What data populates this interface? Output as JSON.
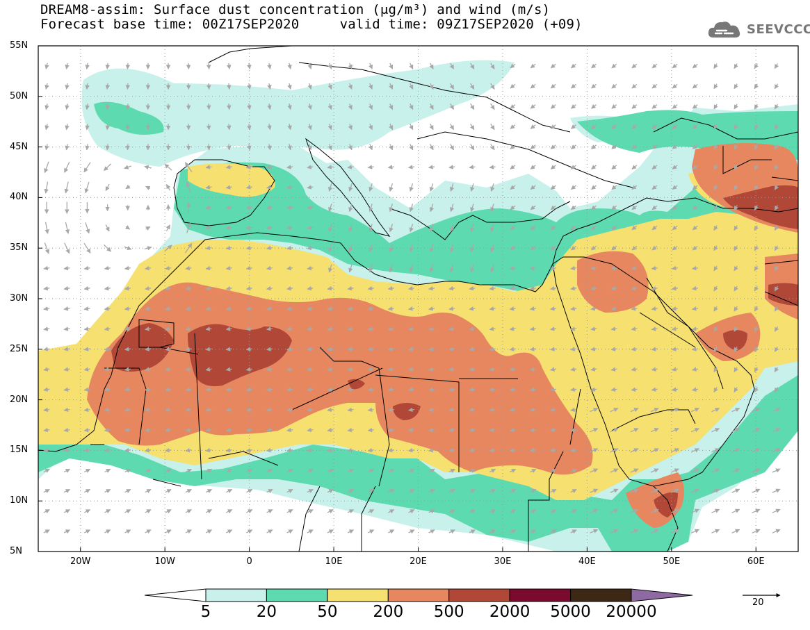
{
  "title_line1": "DREAM8-assim: Surface dust concentration (μg/m³) and wind (m/s)",
  "title_line2": "Forecast base time: 00Z17SEP2020     valid time: 09Z17SEP2020 (+09)",
  "logo": {
    "text": "SEEVCCC",
    "icon": "cloud-logo-icon"
  },
  "map": {
    "projection": "lat-lon",
    "lon_range": [
      -25,
      65
    ],
    "lat_range": [
      5,
      55
    ],
    "lat_ticks": [
      "55N",
      "50N",
      "45N",
      "40N",
      "35N",
      "30N",
      "25N",
      "20N",
      "15N",
      "10N",
      "5N"
    ],
    "lon_ticks": [
      "20W",
      "10W",
      "0",
      "10E",
      "20E",
      "30E",
      "40E",
      "50E",
      "60E"
    ],
    "gridlines": "dotted"
  },
  "colorbar": {
    "labels": [
      "5",
      "20",
      "50",
      "200",
      "500",
      "2000",
      "5000",
      "20000"
    ],
    "colors": [
      "#ffffff",
      "#c7f1ea",
      "#5ddab0",
      "#f5e070",
      "#e6875f",
      "#b04737",
      "#7a0a2e",
      "#3d2715",
      "#8e6aa2"
    ]
  },
  "wind_vector": {
    "reference_label": "20"
  },
  "colors": {
    "arrow": "#a8a8a8",
    "border": "#000000"
  }
}
